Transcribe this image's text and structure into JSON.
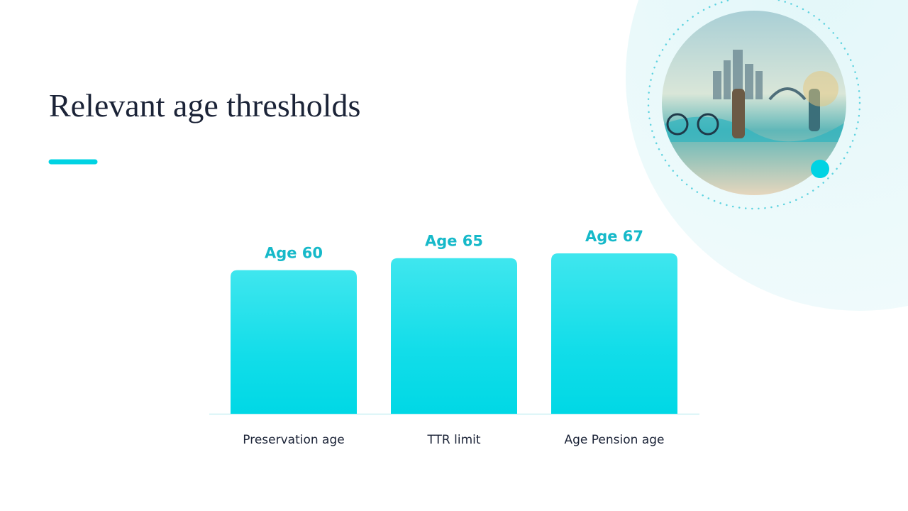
{
  "chart_data": {
    "type": "bar",
    "title": "Relevant age thresholds",
    "categories": [
      "Preservation age",
      "TTR limit",
      "Age Pension age"
    ],
    "values": [
      60,
      65,
      67
    ],
    "value_labels": [
      "Age 60",
      "Age 65",
      "Age 67"
    ],
    "color": "#00d9e6"
  }
}
